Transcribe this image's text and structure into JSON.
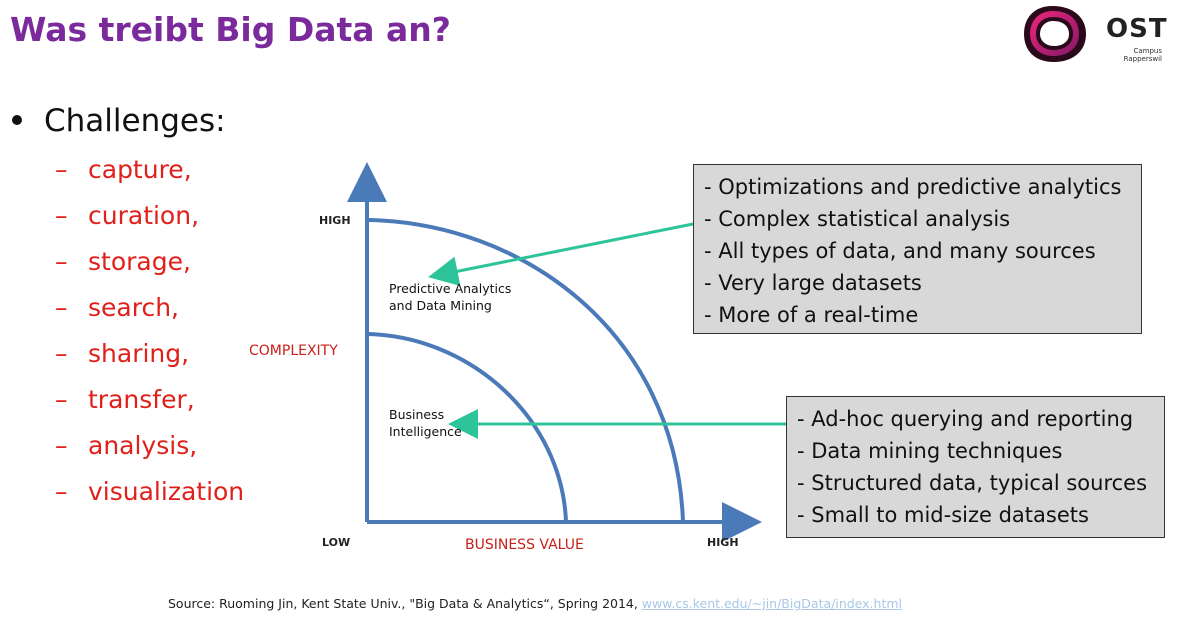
{
  "title": "Was treibt Big Data an?",
  "logo": {
    "name": "OST",
    "sub_line1": "Campus",
    "sub_line2": "Rapperswil"
  },
  "bullet": {
    "heading": "Challenges:",
    "items": [
      "capture,",
      "curation,",
      "storage,",
      "search,",
      "sharing,",
      "transfer,",
      "analysis,",
      "visualization"
    ]
  },
  "chart": {
    "y_high": "HIGH",
    "x_low": "LOW",
    "x_high": "HIGH",
    "y_axis_label": "COMPLEXITY",
    "x_axis_label": "BUSINESS VALUE",
    "outer_region_line1": "Predictive Analytics",
    "outer_region_line2": "and Data Mining",
    "inner_region_line1": "Business",
    "inner_region_line2": "Intelligence"
  },
  "box_top": [
    "- Optimizations and predictive analytics",
    "- Complex statistical analysis",
    "- All types of data, and many sources",
    "- Very large datasets",
    "- More of a real-time"
  ],
  "box_bottom": [
    "- Ad-hoc querying and reporting",
    "- Data mining techniques",
    "- Structured data, typical sources",
    "- Small to mid-size datasets"
  ],
  "source": {
    "text": "Source: Ruoming Jin, Kent State Univ., \"Big Data & Analytics“, Spring 2014,",
    "link": "www.cs.kent.edu/~jin/BigData/index.html"
  },
  "colors": {
    "title": "#7a2a9a",
    "challenge": "#e0201a",
    "axis": "#4a7ab8",
    "arrow": "#2ec49a"
  }
}
